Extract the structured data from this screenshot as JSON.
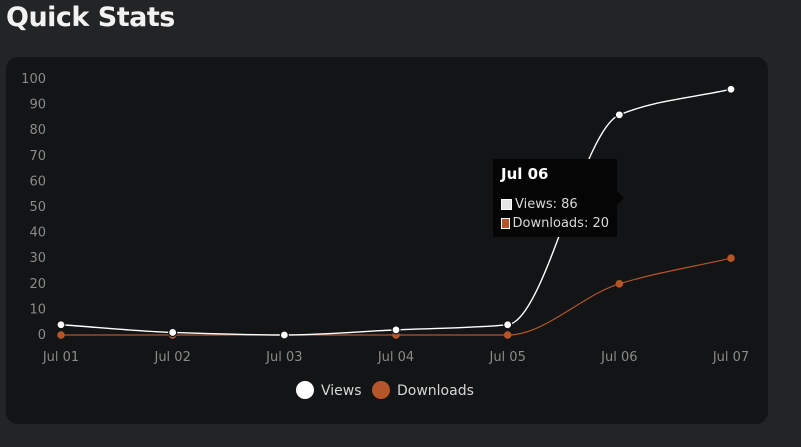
{
  "page": {
    "title": "Quick Stats"
  },
  "chart_data": {
    "type": "line",
    "title": "",
    "xlabel": "",
    "ylabel": "",
    "categories": [
      "Jul 01",
      "Jul 02",
      "Jul 03",
      "Jul 04",
      "Jul 05",
      "Jul 06",
      "Jul 07"
    ],
    "series": [
      {
        "name": "Views",
        "values": [
          4,
          1,
          0,
          2,
          4,
          86,
          96
        ],
        "color": "#ffffff"
      },
      {
        "name": "Downloads",
        "values": [
          0,
          0,
          0,
          0,
          0,
          20,
          30
        ],
        "color": "#b4552a"
      }
    ],
    "ylim": [
      0,
      100
    ],
    "yticks": [
      0,
      10,
      20,
      30,
      40,
      50,
      60,
      70,
      80,
      90,
      100
    ],
    "grid": false,
    "legend": "bottom",
    "curve": "smooth"
  },
  "tooltip": {
    "title": "Jul 06",
    "rows": [
      {
        "label": "Views: 86",
        "color": "#e6e6e6"
      },
      {
        "label": "Downloads: 20",
        "color": "#b4552a"
      }
    ]
  }
}
